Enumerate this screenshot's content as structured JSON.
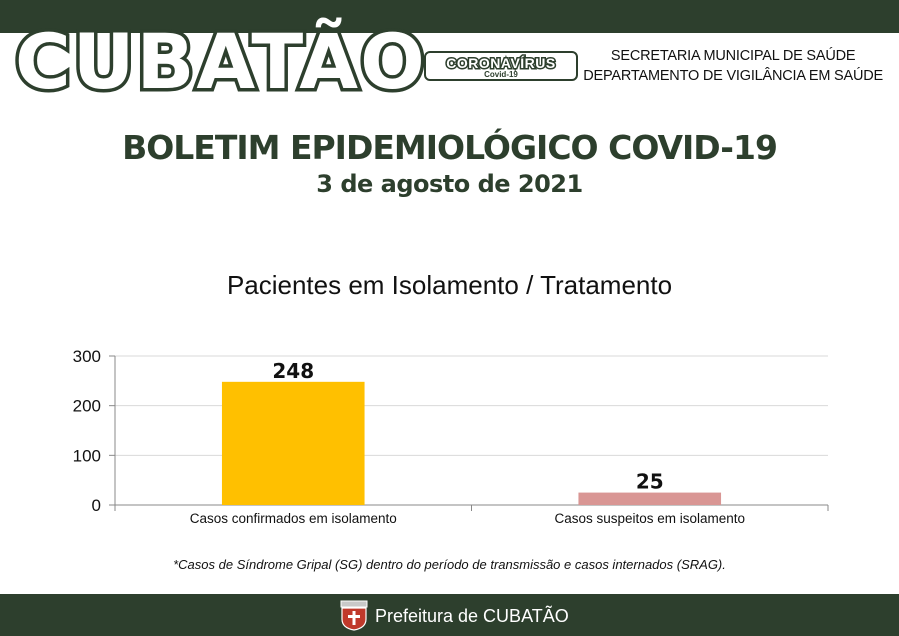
{
  "header": {
    "logo_text": "CUBATÃO",
    "badge_title": "CORONAVÍRUS",
    "badge_subtitle": "Covid-19",
    "department_line1": "SECRETARIA MUNICIPAL DE SAÚDE",
    "department_line2": "DEPARTAMENTO DE VIGILÂNCIA EM SAÚDE"
  },
  "bulletin": {
    "title": "BOLETIM EPIDEMIOLÓGICO COVID-19",
    "date": "3 de agosto de 2021"
  },
  "chart_data": {
    "type": "bar",
    "title": "Pacientes em Isolamento / Tratamento",
    "categories": [
      "Casos confirmados em isolamento",
      "Casos suspeitos em isolamento"
    ],
    "values": [
      248,
      25
    ],
    "colors": [
      "#ffc000",
      "#d99694"
    ],
    "ylim": [
      0,
      300
    ],
    "yticks": [
      0,
      100,
      200,
      300
    ],
    "grid": true,
    "xlabel": "",
    "ylabel": ""
  },
  "footnote": "*Casos de Síndrome Gripal (SG) dentro do período de transmissão e casos internados (SRAG).",
  "footer": {
    "text": "Prefeitura de CUBATÃO",
    "crest_icon": "city-crest-icon"
  },
  "theme": {
    "band_color": "#2d3f2d"
  }
}
